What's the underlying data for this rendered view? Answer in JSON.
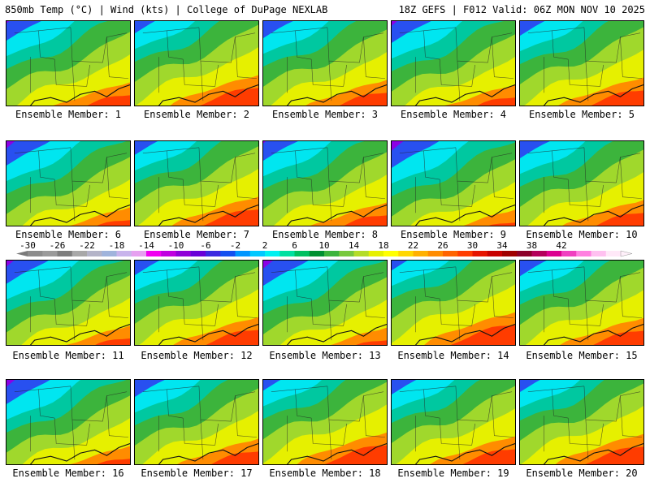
{
  "header": {
    "left": "850mb Temp (°C) | Wind (kts) | College of DuPage NEXLAB",
    "right": "18Z GEFS | F012 Valid: 06Z MON NOV 10 2025"
  },
  "panels": [
    {
      "label": "Ensemble Member: 1",
      "shift": 0.0
    },
    {
      "label": "Ensemble Member: 2",
      "shift": 0.15
    },
    {
      "label": "Ensemble Member: 3",
      "shift": 0.05
    },
    {
      "label": "Ensemble Member: 4",
      "shift": -0.05
    },
    {
      "label": "Ensemble Member: 5",
      "shift": 0.1
    },
    {
      "label": "Ensemble Member: 6",
      "shift": -0.1
    },
    {
      "label": "Ensemble Member: 7",
      "shift": 0.12
    },
    {
      "label": "Ensemble Member: 8",
      "shift": 0.0
    },
    {
      "label": "Ensemble Member: 9",
      "shift": -0.15
    },
    {
      "label": "Ensemble Member: 10",
      "shift": 0.05
    },
    {
      "label": "Ensemble Member: 11",
      "shift": -0.08
    },
    {
      "label": "Ensemble Member: 12",
      "shift": 0.1
    },
    {
      "label": "Ensemble Member: 13",
      "shift": -0.12
    },
    {
      "label": "Ensemble Member: 14",
      "shift": 0.2
    },
    {
      "label": "Ensemble Member: 15",
      "shift": 0.08
    },
    {
      "label": "Ensemble Member: 16",
      "shift": -0.1
    },
    {
      "label": "Ensemble Member: 17",
      "shift": 0.05
    },
    {
      "label": "Ensemble Member: 18",
      "shift": 0.18
    },
    {
      "label": "Ensemble Member: 19",
      "shift": 0.1
    },
    {
      "label": "Ensemble Member: 20",
      "shift": 0.15
    }
  ],
  "colorbar": {
    "ticks": [
      "-30",
      "-26",
      "-22",
      "-18",
      "-14",
      "-10",
      "-6",
      "-2",
      "2",
      "6",
      "10",
      "14",
      "18",
      "22",
      "26",
      "30",
      "34",
      "38",
      "42"
    ],
    "colors": [
      "#8c8c8c",
      "#9a9a9a",
      "#7d7d7d",
      "#a8a8a8",
      "#b4b4c8",
      "#a0b4dc",
      "#c8b4ec",
      "#e6a0f0",
      "#f000f0",
      "#c000e0",
      "#9000d8",
      "#6a00d8",
      "#3c28e0",
      "#1450f0",
      "#0096ff",
      "#00c8ff",
      "#00f0f0",
      "#00e0a0",
      "#00c060",
      "#009030",
      "#3cb43c",
      "#78c83c",
      "#b4dc28",
      "#e6f000",
      "#ffff00",
      "#ffd700",
      "#ffb000",
      "#ff8c00",
      "#ff6400",
      "#ff3c00",
      "#e61400",
      "#c80000",
      "#a00000",
      "#8c0028",
      "#b4005a",
      "#dc0090",
      "#f040c0",
      "#ff80e0",
      "#ffc0f0",
      "#ffe8f8"
    ]
  },
  "colors": {
    "magenta": "#f000f0",
    "purple": "#8c00e6",
    "blue": "#2850f0",
    "cyan": "#00e6f0",
    "teal": "#00c8a0",
    "green": "#3cb43c",
    "lime": "#a0d82c",
    "yellow": "#e6f000",
    "orange": "#ff8c00",
    "red": "#ff3c00"
  }
}
